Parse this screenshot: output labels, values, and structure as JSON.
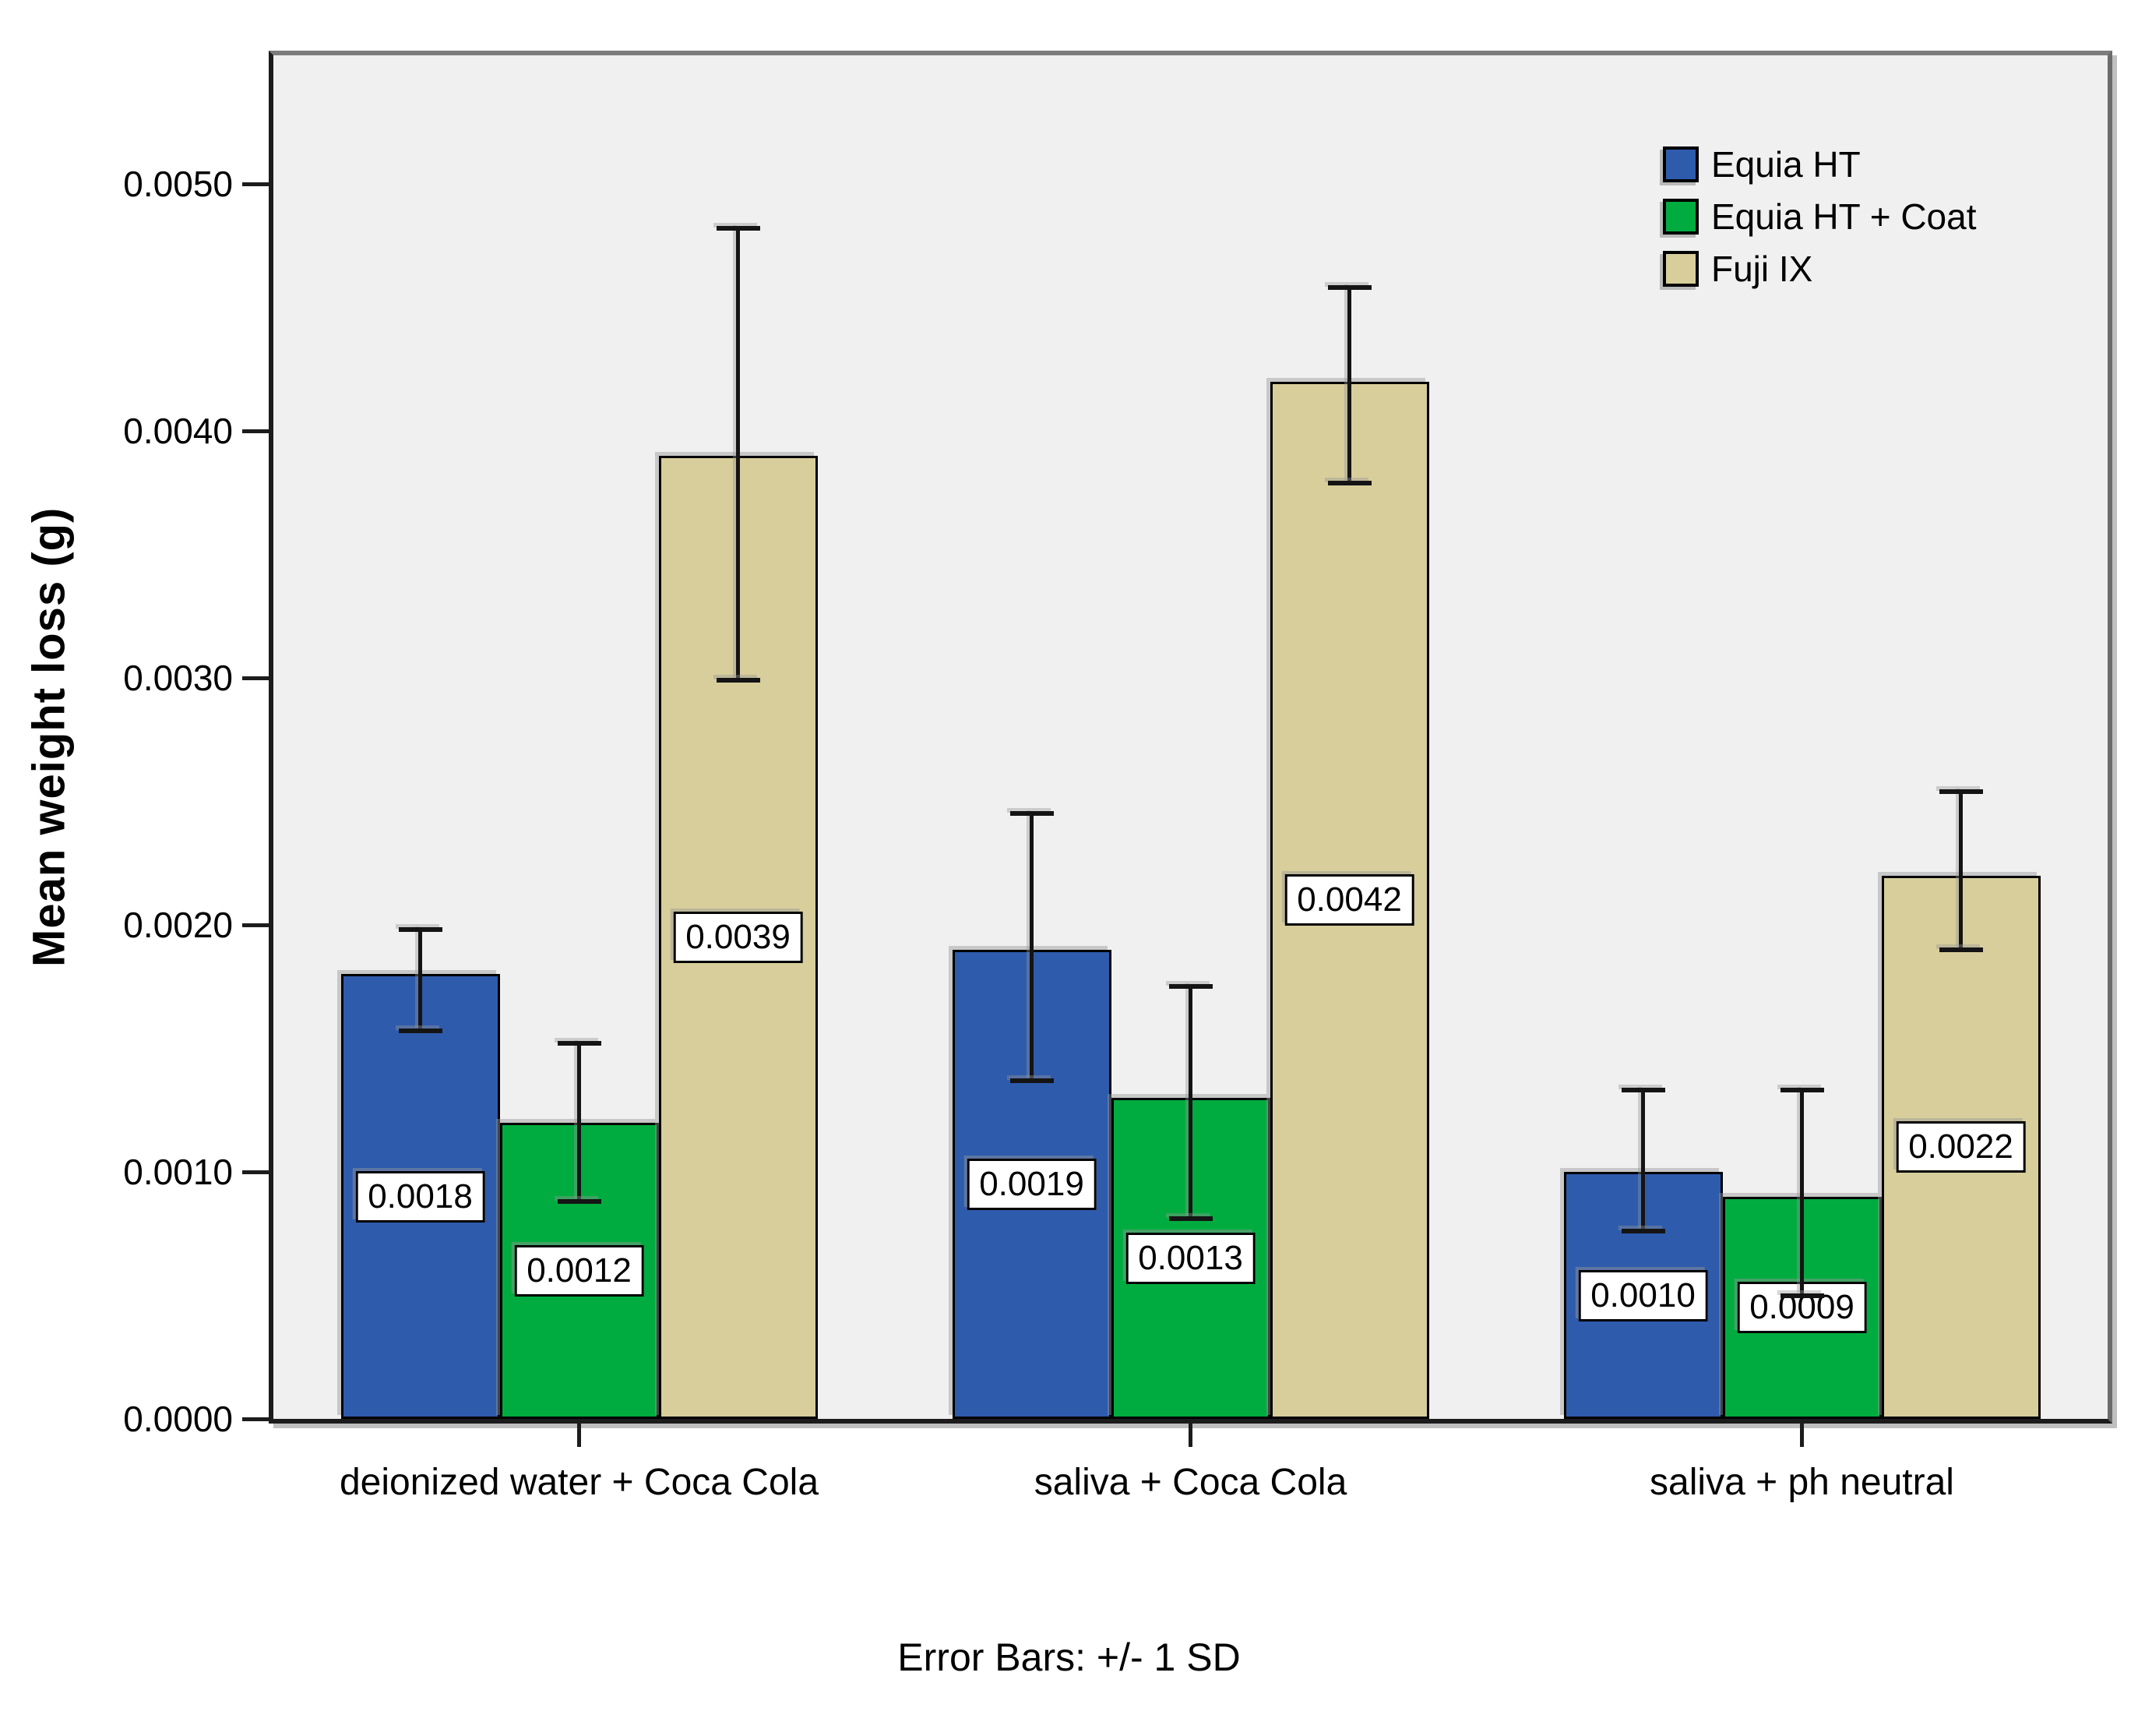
{
  "figure": {
    "caption": "Error Bars: +/- 1 SD",
    "y_axis": {
      "title": "Mean weight loss (g)",
      "tick_labels": [
        "0.0000",
        "0.0010",
        "0.0020",
        "0.0030",
        "0.0040",
        "0.0050"
      ],
      "tick_values": [
        0,
        0.001,
        0.002,
        0.003,
        0.004,
        0.005
      ]
    },
    "colors": {
      "plot_background": "#F0F0F0",
      "page_background": "#FFFFFF",
      "axis_line": "#1C1C1C",
      "series_blue": "#2E5BAC",
      "series_green": "#00AC3F",
      "series_tan": "#D8CE9B"
    }
  },
  "chart_data": {
    "type": "bar",
    "title": "",
    "xlabel": "",
    "ylabel": "Mean weight loss (g)",
    "ylim": [
      0,
      0.00552
    ],
    "grid": false,
    "legend_position": "top-right-inside",
    "error_bars_note": "+/- 1 SD",
    "categories": [
      "deionized water + Coca Cola",
      "saliva + Coca Cola",
      "saliva + ph neutral"
    ],
    "series": [
      {
        "name": "Equia HT",
        "color": "#2E5BAC",
        "values": [
          0.0018,
          0.0019,
          0.001
        ],
        "labels": [
          "0.0018",
          "0.0019",
          "0.0010"
        ],
        "error_high": [
          0.00198,
          0.00245,
          0.00133
        ],
        "error_low": [
          0.00157,
          0.00137,
          0.00076
        ]
      },
      {
        "name": "Equia HT + Coat",
        "color": "#00AC3F",
        "values": [
          0.0012,
          0.0013,
          0.0009
        ],
        "labels": [
          "0.0012",
          "0.0013",
          "0.0009"
        ],
        "error_high": [
          0.00152,
          0.00175,
          0.00133
        ],
        "error_low": [
          0.00088,
          0.00081,
          0.0005
        ]
      },
      {
        "name": "Fuji IX",
        "color": "#D8CE9B",
        "values": [
          0.0039,
          0.0042,
          0.0022
        ],
        "labels": [
          "0.0039",
          "0.0042",
          "0.0022"
        ],
        "error_high": [
          0.00482,
          0.00458,
          0.00254
        ],
        "error_low": [
          0.00299,
          0.00379,
          0.0019
        ]
      }
    ]
  }
}
